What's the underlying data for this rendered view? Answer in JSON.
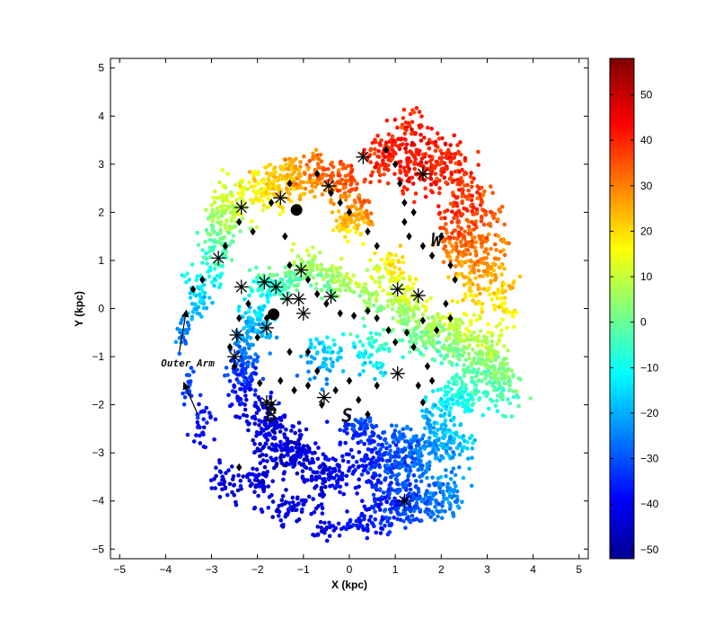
{
  "chart_data": {
    "type": "scatter",
    "xlabel": "X (kpc)",
    "ylabel": "Y (kpc)",
    "xlim": [
      -5.2,
      5.2
    ],
    "ylim": [
      -5.2,
      5.2
    ],
    "x_ticks": [
      -5,
      -4,
      -3,
      -2,
      -1,
      0,
      1,
      2,
      3,
      4,
      5
    ],
    "y_ticks": [
      -5,
      -4,
      -3,
      -2,
      -1,
      0,
      1,
      2,
      3,
      4,
      5
    ],
    "grid": false,
    "colorbar": {
      "colormap": "jet",
      "range": [
        -52,
        58
      ],
      "ticks": [
        -50,
        -40,
        -30,
        -20,
        -10,
        0,
        10,
        20,
        30,
        40,
        50
      ]
    },
    "annotations": [
      {
        "text": "Outer Arm",
        "x": -4.1,
        "y": -1.2
      },
      {
        "text": "W",
        "x": 1.9,
        "y": 1.3
      },
      {
        "text": "B",
        "x": -1.7,
        "y": -2.35
      },
      {
        "text": "S",
        "x": -0.05,
        "y": -2.35
      }
    ],
    "arrows": [
      {
        "from": [
          -3.7,
          -0.9
        ],
        "to": [
          -3.55,
          -0.05
        ]
      },
      {
        "from": [
          -3.3,
          -2.2
        ],
        "to": [
          -3.6,
          -1.55
        ]
      }
    ],
    "series": [
      {
        "marker": "asterisk",
        "points": [
          [
            0.3,
            3.15
          ],
          [
            1.6,
            2.8
          ],
          [
            -0.45,
            2.55
          ],
          [
            -1.5,
            2.3
          ],
          [
            -2.35,
            2.1
          ],
          [
            -2.85,
            1.05
          ],
          [
            -1.05,
            0.8
          ],
          [
            -2.35,
            0.45
          ],
          [
            -1.85,
            0.55
          ],
          [
            -1.6,
            0.45
          ],
          [
            -1.35,
            0.2
          ],
          [
            -1.1,
            0.2
          ],
          [
            -1.0,
            -0.1
          ],
          [
            -0.4,
            0.25
          ],
          [
            1.05,
            0.4
          ],
          [
            1.5,
            0.27
          ],
          [
            -1.8,
            -0.4
          ],
          [
            -2.45,
            -0.55
          ],
          [
            -2.5,
            -1.0
          ],
          [
            -1.7,
            -2.0
          ],
          [
            -1.8,
            -1.95
          ],
          [
            -0.55,
            -1.85
          ],
          [
            1.05,
            -1.35
          ],
          [
            1.2,
            -4.0
          ]
        ]
      },
      {
        "marker": "diamond",
        "points": [
          [
            -1.3,
            2.6
          ],
          [
            -1.7,
            2.2
          ],
          [
            -2.4,
            1.8
          ],
          [
            -2.7,
            1.3
          ],
          [
            -3.2,
            0.6
          ],
          [
            -3.4,
            0.4
          ],
          [
            -2.1,
            1.6
          ],
          [
            -1.4,
            1.5
          ],
          [
            -0.7,
            2.8
          ],
          [
            -0.4,
            2.4
          ],
          [
            -0.2,
            2.2
          ],
          [
            0.0,
            2.0
          ],
          [
            0.4,
            1.6
          ],
          [
            0.6,
            1.3
          ],
          [
            0.8,
            3.3
          ],
          [
            1.0,
            3.0
          ],
          [
            1.1,
            2.6
          ],
          [
            1.2,
            2.2
          ],
          [
            1.4,
            2.0
          ],
          [
            1.2,
            1.8
          ],
          [
            1.3,
            1.5
          ],
          [
            1.6,
            1.3
          ],
          [
            1.8,
            1.1
          ],
          [
            2.0,
            1.5
          ],
          [
            2.2,
            0.9
          ],
          [
            2.3,
            0.6
          ],
          [
            -1.3,
            0.9
          ],
          [
            -0.9,
            0.6
          ],
          [
            -0.7,
            0.3
          ],
          [
            -0.5,
            0.1
          ],
          [
            -0.2,
            -0.1
          ],
          [
            0.1,
            -0.15
          ],
          [
            0.4,
            -0.05
          ],
          [
            0.6,
            -0.2
          ],
          [
            0.85,
            -0.45
          ],
          [
            1.0,
            -0.7
          ],
          [
            1.25,
            -0.5
          ],
          [
            1.4,
            -0.8
          ],
          [
            1.6,
            -0.25
          ],
          [
            1.9,
            -0.45
          ],
          [
            2.1,
            0.1
          ],
          [
            2.2,
            -0.2
          ],
          [
            1.5,
            -1.6
          ],
          [
            1.7,
            -1.2
          ],
          [
            1.8,
            -1.5
          ],
          [
            1.6,
            -1.95
          ],
          [
            -0.9,
            -0.9
          ],
          [
            -0.7,
            -1.3
          ],
          [
            -0.9,
            -1.6
          ],
          [
            -0.6,
            -2.0
          ],
          [
            -0.3,
            -1.7
          ],
          [
            0.0,
            -1.5
          ],
          [
            0.2,
            -1.9
          ],
          [
            0.4,
            -2.2
          ],
          [
            0.6,
            -1.6
          ],
          [
            -1.2,
            -1.7
          ],
          [
            -1.5,
            -1.5
          ],
          [
            -2.0,
            -0.6
          ],
          [
            -2.4,
            -0.2
          ],
          [
            -2.6,
            -0.8
          ],
          [
            -1.8,
            -0.2
          ],
          [
            -2.2,
            0.1
          ],
          [
            -2.5,
            -1.2
          ],
          [
            -2.4,
            -3.3
          ],
          [
            -1.95,
            -1.55
          ],
          [
            -1.3,
            -0.9
          ]
        ]
      },
      {
        "marker": "circle",
        "points": [
          [
            -1.15,
            2.05
          ],
          [
            -1.65,
            -0.12
          ]
        ]
      }
    ]
  }
}
